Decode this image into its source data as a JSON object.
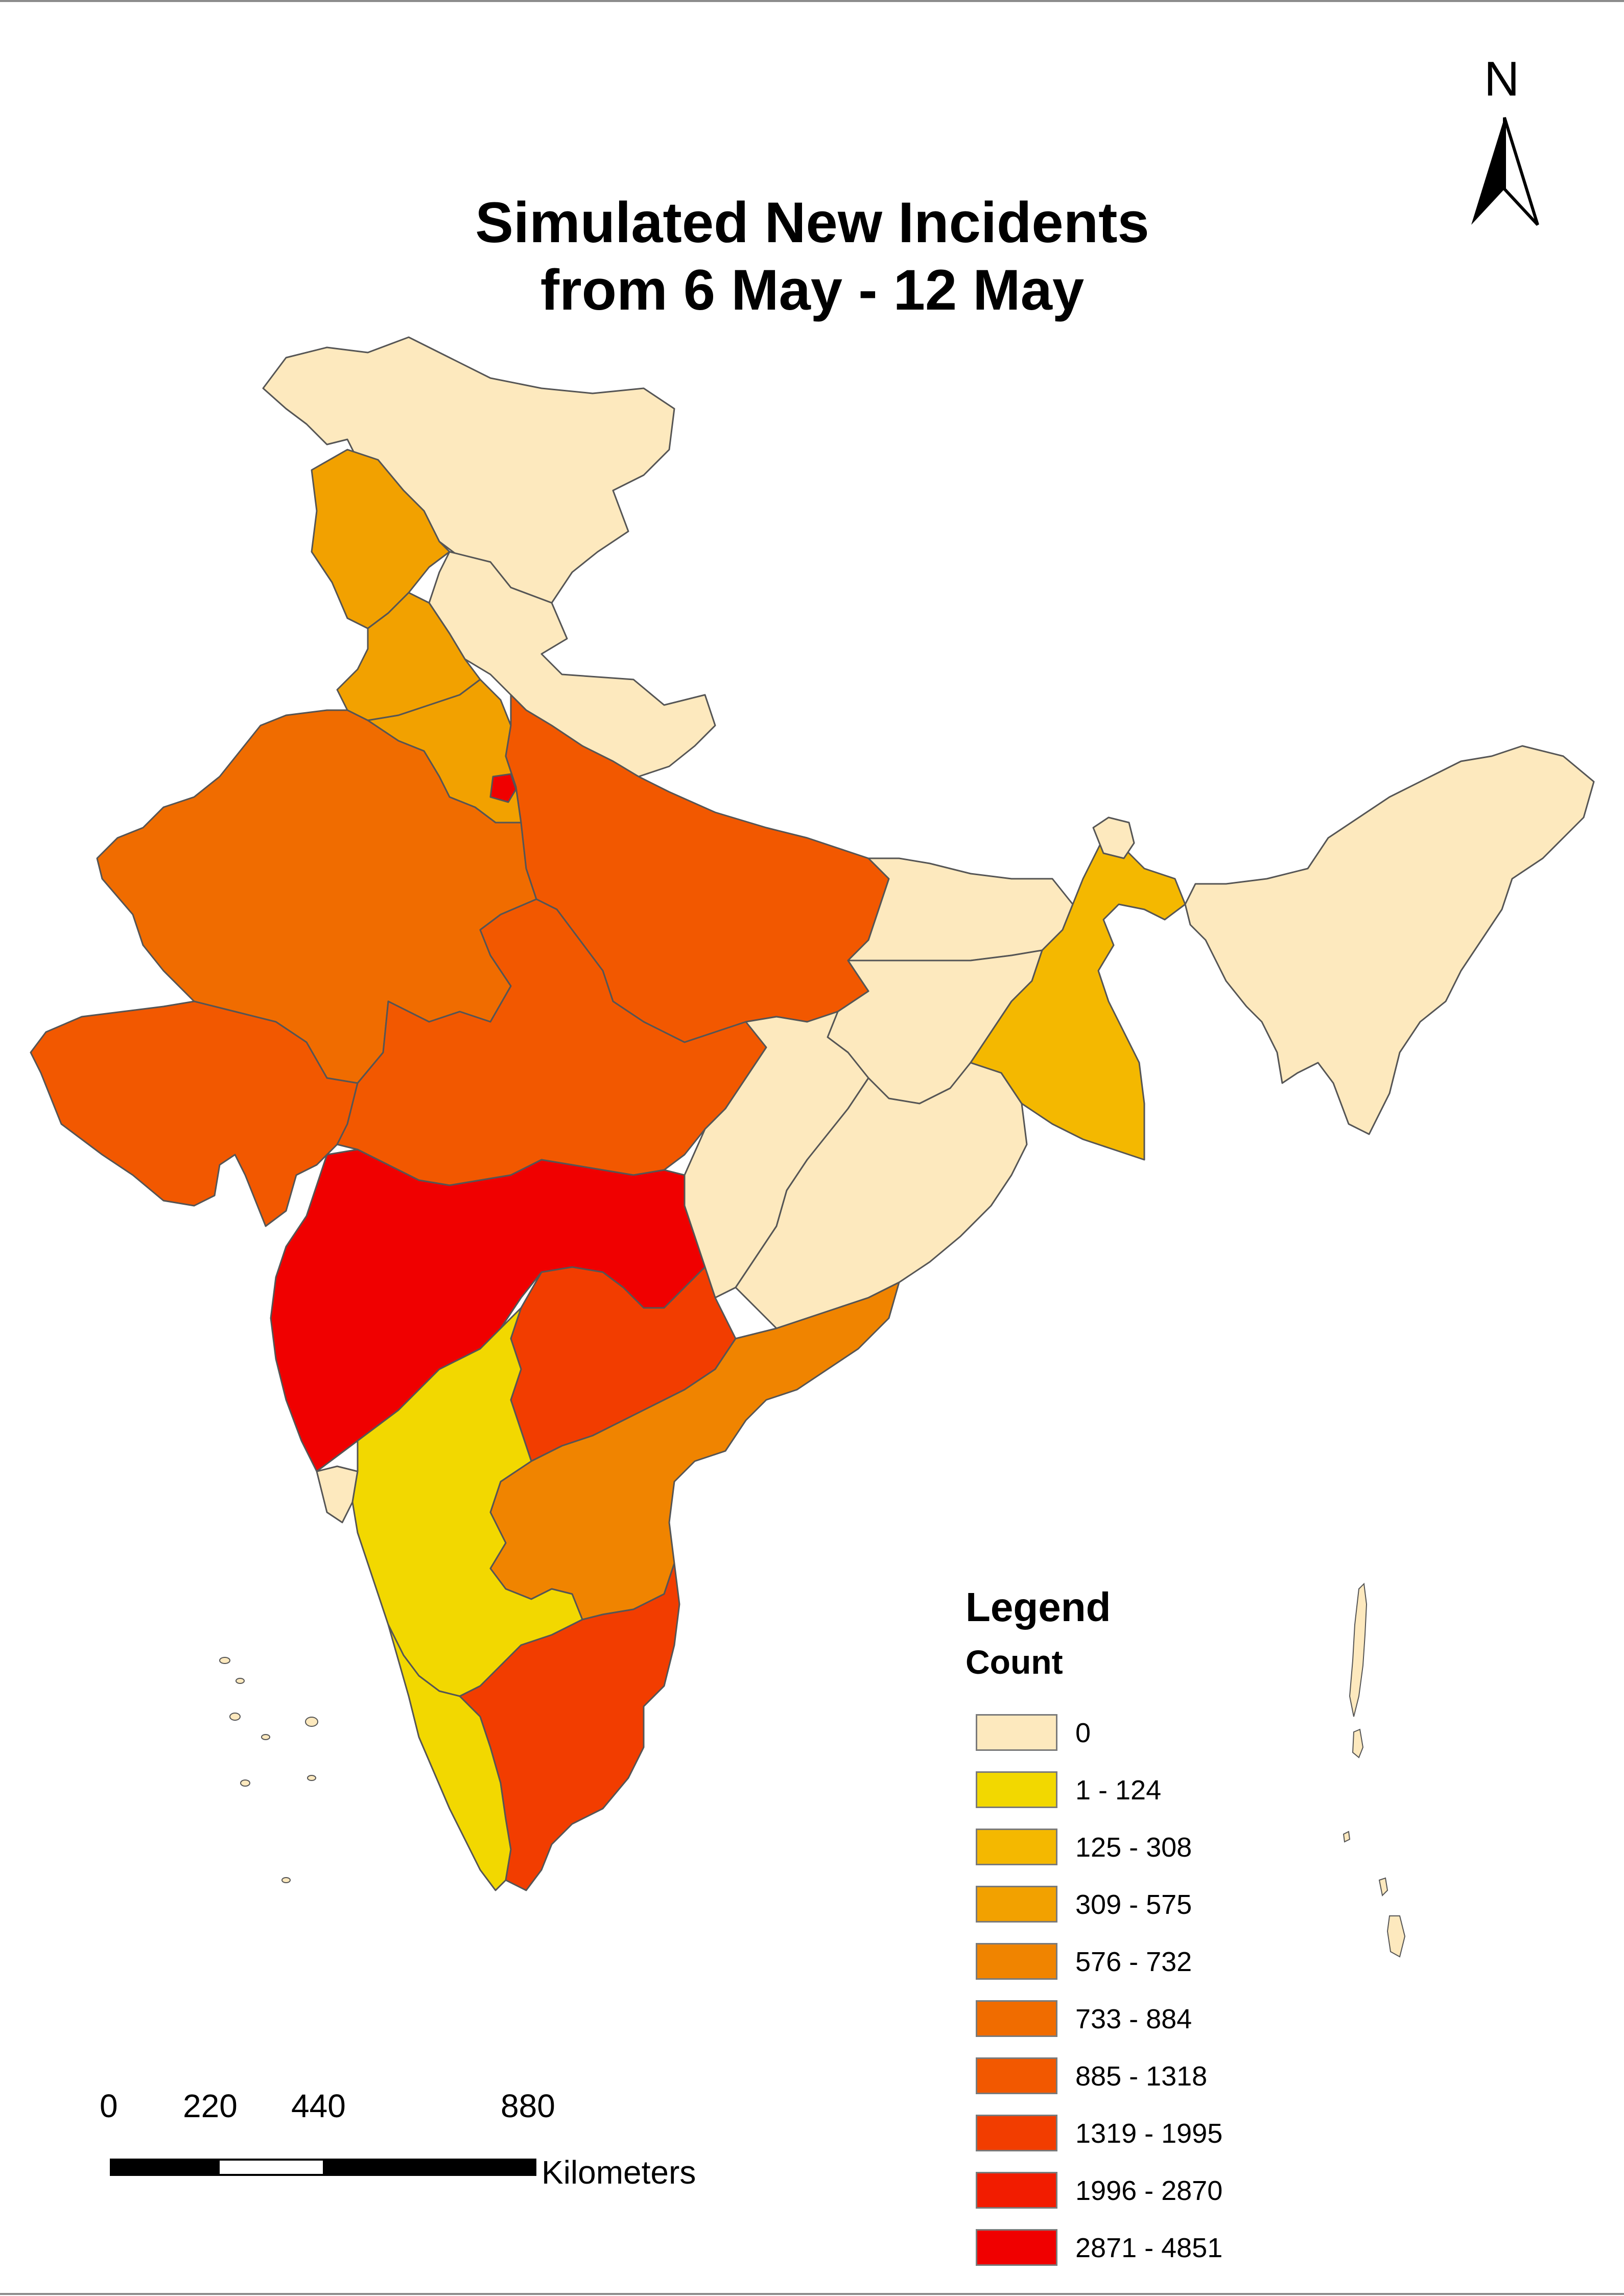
{
  "map": {
    "title_line1": "Simulated New Incidents",
    "title_line2": "from 6 May - 12 May",
    "north_arrow_label": "N",
    "region": "India",
    "regions": [
      {
        "id": "jammu-kashmir",
        "class": "0"
      },
      {
        "id": "himachal-pradesh",
        "class": "309 - 575"
      },
      {
        "id": "punjab",
        "class": "309 - 575"
      },
      {
        "id": "uttarakhand",
        "class": "0"
      },
      {
        "id": "haryana",
        "class": "309 - 575"
      },
      {
        "id": "delhi",
        "class": "2871 - 4851"
      },
      {
        "id": "rajasthan",
        "class": "733 - 884"
      },
      {
        "id": "uttar-pradesh",
        "class": "885 - 1318"
      },
      {
        "id": "gujarat",
        "class": "885 - 1318"
      },
      {
        "id": "madhya-pradesh",
        "class": "885 - 1318"
      },
      {
        "id": "bihar",
        "class": "0"
      },
      {
        "id": "jharkhand",
        "class": "0"
      },
      {
        "id": "chhattisgarh",
        "class": "0"
      },
      {
        "id": "odisha",
        "class": "0"
      },
      {
        "id": "west-bengal",
        "class": "125 - 308"
      },
      {
        "id": "sikkim",
        "class": "0"
      },
      {
        "id": "northeast",
        "class": "0"
      },
      {
        "id": "maharashtra",
        "class": "2871 - 4851"
      },
      {
        "id": "telangana",
        "class": "1319 - 1995"
      },
      {
        "id": "andhra-pradesh",
        "class": "576 - 732"
      },
      {
        "id": "goa",
        "class": "0"
      },
      {
        "id": "karnataka",
        "class": "1 - 124"
      },
      {
        "id": "kerala",
        "class": "1 - 124"
      },
      {
        "id": "tamil-nadu",
        "class": "1319 - 1995"
      },
      {
        "id": "andaman-nicobar",
        "class": "0"
      },
      {
        "id": "lakshadweep",
        "class": "0"
      }
    ]
  },
  "legend": {
    "title": "Legend",
    "subtitle": "Count",
    "items": [
      {
        "label": "0",
        "color": "#fde9be"
      },
      {
        "label": "1 - 124",
        "color": "#f2d800"
      },
      {
        "label": "125 - 308",
        "color": "#f4b800"
      },
      {
        "label": "309 - 575",
        "color": "#f2a100"
      },
      {
        "label": "576 - 732",
        "color": "#f08400"
      },
      {
        "label": "733 - 884",
        "color": "#f06c00"
      },
      {
        "label": "885 - 1318",
        "color": "#f25800"
      },
      {
        "label": "1319 - 1995",
        "color": "#f23d00"
      },
      {
        "label": "1996 - 2870",
        "color": "#f21c00"
      },
      {
        "label": "2871 - 4851",
        "color": "#f00000"
      }
    ]
  },
  "scale_bar": {
    "ticks": [
      "0",
      "220",
      "440",
      "880"
    ],
    "unit": "Kilometers"
  },
  "colors": {
    "border": "#555555"
  }
}
